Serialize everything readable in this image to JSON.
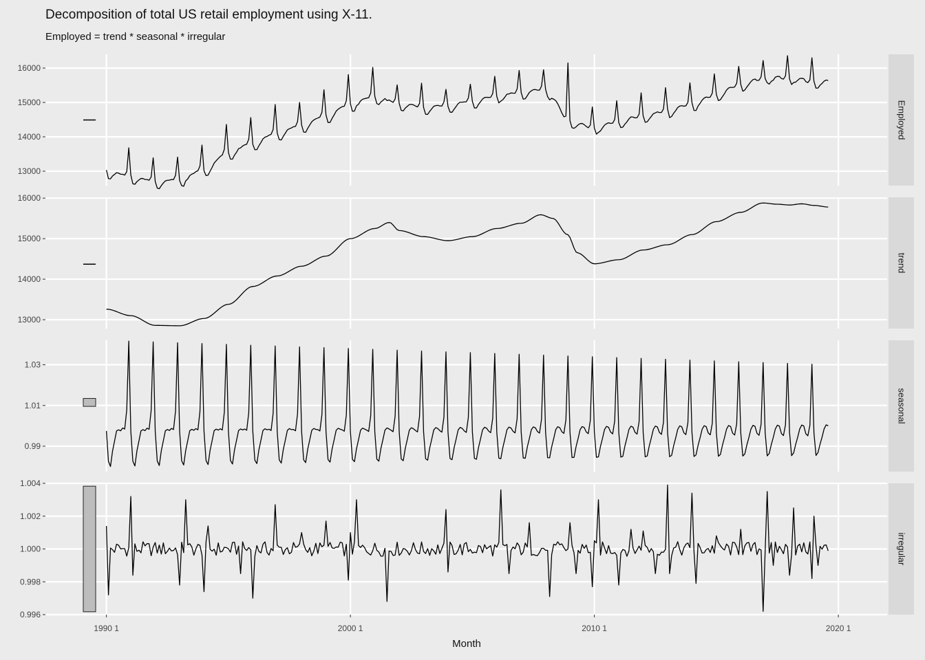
{
  "header": {
    "title": "Decomposition of total US retail employment using X-11.",
    "subtitle": "Employed = trend * seasonal * irregular"
  },
  "colors": {
    "background": "#ebebeb",
    "panel_background": "#ebebeb",
    "strip_background": "#d9d9d9",
    "grid": "#ffffff",
    "line": "#000000",
    "range_bar_fill": "#bdbdbd"
  },
  "chart_data": {
    "type": "line",
    "layout": "faceted-vertical",
    "xlabel": "Month",
    "xlim": [
      1987.5,
      2022.0
    ],
    "x_ticks": [
      {
        "value": 1990.0,
        "label": "1990 1"
      },
      {
        "value": 2000.0,
        "label": "2000 1"
      },
      {
        "value": 2010.0,
        "label": "2010 1"
      },
      {
        "value": 2020.0,
        "label": "2020 1"
      }
    ],
    "x_start": 1990.0,
    "x_end": 2019.583,
    "range_bars": "left",
    "grid": true,
    "panels": [
      {
        "name": "Employed",
        "ylim": [
          12580,
          16400
        ],
        "y_ticks": [
          13000,
          14000,
          15000,
          16000
        ],
        "y_tick_labels": [
          "13000",
          "14000",
          "15000",
          "16000"
        ],
        "range_bar_center": 14490,
        "annual_anchors": [
          [
            1990,
            13050
          ],
          [
            1991,
            12880
          ],
          [
            1992,
            12730
          ],
          [
            1993,
            12790
          ],
          [
            1994,
            13080
          ],
          [
            1995,
            13580
          ],
          [
            1996,
            13860
          ],
          [
            1997,
            14150
          ],
          [
            1998,
            14370
          ],
          [
            1999,
            14650
          ],
          [
            2000,
            14990
          ],
          [
            2001,
            15220
          ],
          [
            2002,
            15020
          ],
          [
            2003,
            14900
          ],
          [
            2004,
            14950
          ],
          [
            2005,
            15080
          ],
          [
            2006,
            15220
          ],
          [
            2007,
            15340
          ],
          [
            2008,
            15430
          ],
          [
            2009,
            14490
          ],
          [
            2010,
            14290
          ],
          [
            2011,
            14490
          ],
          [
            2012,
            14640
          ],
          [
            2013,
            14800
          ],
          [
            2014,
            14990
          ],
          [
            2015,
            15270
          ],
          [
            2016,
            15560
          ],
          [
            2017,
            15750
          ],
          [
            2018,
            15760
          ],
          [
            2019,
            15640
          ],
          [
            2020,
            15640
          ]
        ],
        "december_peaks": [
          13680,
          13390,
          13410,
          13760,
          14360,
          14560,
          14940,
          15000,
          15370,
          15810,
          16020,
          15510,
          15560,
          15380,
          15530,
          15760,
          15930,
          15950,
          16150,
          14870,
          15050,
          15280,
          15430,
          15570,
          15830,
          16050,
          16220,
          16360,
          16300,
          16300
        ]
      },
      {
        "name": "trend",
        "ylim": [
          12780,
          16020
        ],
        "y_ticks": [
          13000,
          14000,
          15000,
          16000
        ],
        "y_tick_labels": [
          "13000",
          "14000",
          "15000",
          "16000"
        ],
        "range_bar_center": 14370,
        "annual_anchors": [
          [
            1990,
            13260
          ],
          [
            1991,
            13100
          ],
          [
            1992,
            12860
          ],
          [
            1993,
            12850
          ],
          [
            1994,
            13030
          ],
          [
            1995,
            13380
          ],
          [
            1996,
            13820
          ],
          [
            1997,
            14080
          ],
          [
            1998,
            14320
          ],
          [
            1999,
            14570
          ],
          [
            2000,
            15000
          ],
          [
            2001,
            15250
          ],
          [
            2001.6,
            15400
          ],
          [
            2002,
            15200
          ],
          [
            2003,
            15050
          ],
          [
            2004,
            14950
          ],
          [
            2005,
            15050
          ],
          [
            2006,
            15250
          ],
          [
            2007,
            15380
          ],
          [
            2007.8,
            15590
          ],
          [
            2008.3,
            15500
          ],
          [
            2008.9,
            15100
          ],
          [
            2009.3,
            14650
          ],
          [
            2010,
            14380
          ],
          [
            2011,
            14480
          ],
          [
            2012,
            14720
          ],
          [
            2013,
            14850
          ],
          [
            2014,
            15100
          ],
          [
            2015,
            15420
          ],
          [
            2016,
            15650
          ],
          [
            2016.9,
            15880
          ],
          [
            2017.5,
            15850
          ],
          [
            2018,
            15830
          ],
          [
            2018.5,
            15860
          ],
          [
            2019,
            15820
          ],
          [
            2019.6,
            15780
          ]
        ]
      },
      {
        "name": "seasonal",
        "ylim": [
          0.9775,
          1.042
        ],
        "y_ticks": [
          0.99,
          1.01,
          1.03
        ],
        "y_tick_labels": [
          "0.99",
          "1.01",
          "1.03"
        ],
        "range_bar_center": 1.0115,
        "monthly_factors_1990": [
          0.9975,
          0.9825,
          0.98,
          0.9875,
          0.9925,
          0.9975,
          0.998,
          0.9975,
          0.999,
          0.9985,
          1.008,
          1.042
        ],
        "monthly_factors_2019": [
          0.9965,
          0.9855,
          0.987,
          0.991,
          0.9945,
          0.9985,
          1.0005,
          1.0,
          0.996,
          0.995,
          1.0,
          1.03
        ]
      },
      {
        "name": "irregular",
        "ylim": [
          0.996,
          1.004
        ],
        "y_ticks": [
          0.996,
          0.998,
          1.0,
          1.002,
          1.004
        ],
        "y_tick_labels": [
          "0.996",
          "0.998",
          "1.000",
          "1.002",
          "1.004"
        ],
        "range_bar_center": 1.0,
        "spikes": [
          [
            1990.0,
            1.0014
          ],
          [
            1990.08,
            0.9972
          ],
          [
            1991.0,
            1.0032
          ],
          [
            1991.08,
            0.9984
          ],
          [
            1993.0,
            0.9978
          ],
          [
            1993.25,
            1.003
          ],
          [
            1994.0,
            0.9974
          ],
          [
            1994.15,
            1.0014
          ],
          [
            1995.5,
            0.9985
          ],
          [
            1996.0,
            0.997
          ],
          [
            1996.92,
            1.0027
          ],
          [
            1998.0,
            1.001
          ],
          [
            1999.0,
            1.0017
          ],
          [
            1999.9,
            0.9981
          ],
          [
            2000.0,
            1.001
          ],
          [
            2000.25,
            1.003
          ],
          [
            2001.5,
            0.9968
          ],
          [
            2003.92,
            1.0024
          ],
          [
            2004.0,
            0.9986
          ],
          [
            2006.2,
            1.0036
          ],
          [
            2006.5,
            0.9985
          ],
          [
            2007.3,
            1.0016
          ],
          [
            2008.2,
            0.9971
          ],
          [
            2009.0,
            1.0016
          ],
          [
            2009.25,
            0.9985
          ],
          [
            2009.9,
            0.9977
          ],
          [
            2010.0,
            1.0005
          ],
          [
            2010.2,
            1.003
          ],
          [
            2011.0,
            0.9978
          ],
          [
            2011.5,
            1.0012
          ],
          [
            2012.0,
            1.0011
          ],
          [
            2012.5,
            0.9985
          ],
          [
            2013.0,
            1.0039
          ],
          [
            2013.1,
            0.9985
          ],
          [
            2014.0,
            1.0034
          ],
          [
            2014.15,
            0.9979
          ],
          [
            2015.0,
            1.0008
          ],
          [
            2016.0,
            1.0012
          ],
          [
            2016.92,
            0.9962
          ],
          [
            2017.08,
            1.0035
          ],
          [
            2017.3,
            0.999
          ],
          [
            2018.0,
            0.9984
          ],
          [
            2018.15,
            1.0025
          ],
          [
            2018.9,
            0.9982
          ],
          [
            2019.0,
            1.002
          ],
          [
            2019.2,
            0.999
          ]
        ]
      }
    ]
  }
}
